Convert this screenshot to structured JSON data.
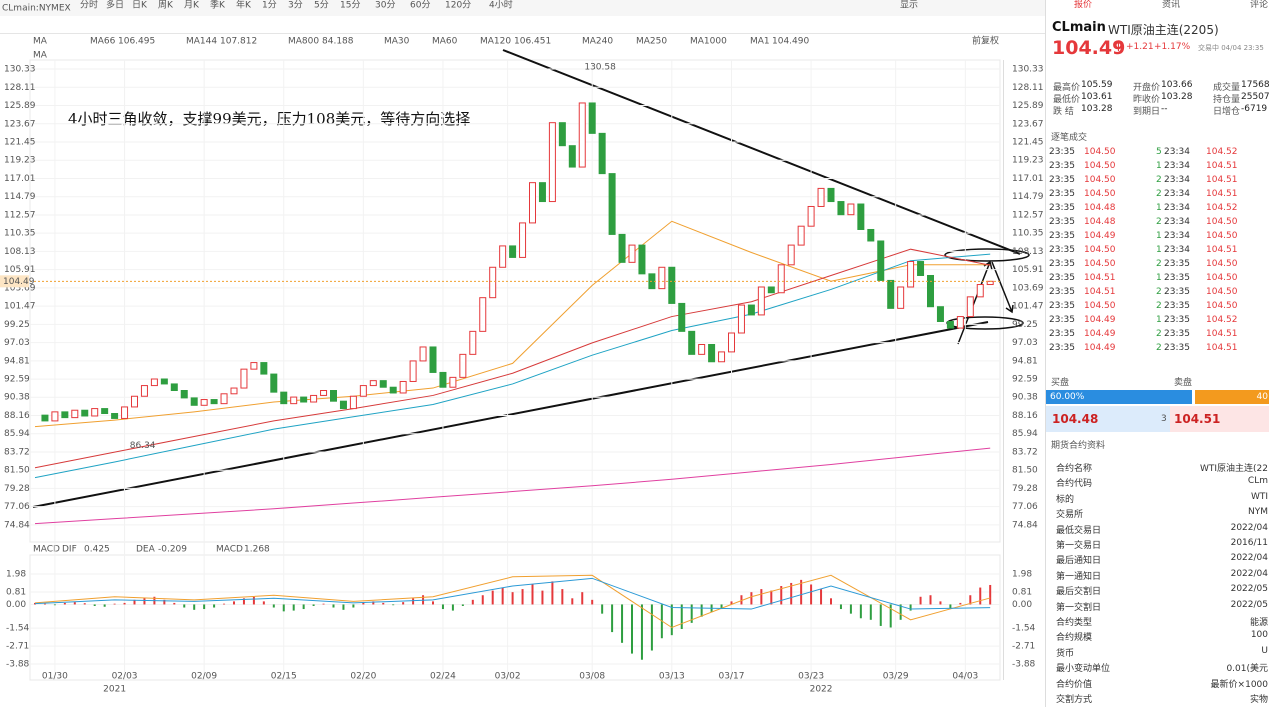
{
  "toolbar": {
    "symbol": "CLmain:NYMEX",
    "intervals": [
      "分时",
      "多日",
      "日K",
      "周K",
      "月K",
      "季K",
      "年K",
      "1分",
      "3分",
      "5分",
      "15分",
      "30分",
      "60分",
      "120分",
      "4小时"
    ],
    "display": "显示"
  },
  "chart_data": {
    "type": "candlestick",
    "annotation": "4小时三角收敛，支撑99美元，压力108美元，等待方向选择",
    "legend": [
      {
        "label": "MA",
        "value": null
      },
      {
        "name": "MA66",
        "value": "106.495",
        "color": "#f0a030"
      },
      {
        "name": "MA144",
        "value": "107.812",
        "color": "#1fa3c4"
      },
      {
        "name": "MA800",
        "value": "84.188",
        "color": "#e040a0"
      },
      {
        "name": "MA30",
        "value": null,
        "color": "#b8c8e8"
      },
      {
        "name": "MA60",
        "value": null,
        "color": "#b8c8e8"
      },
      {
        "name": "MA120",
        "value": "106.451",
        "color": "#d63a3a"
      },
      {
        "name": "MA240",
        "value": null,
        "color": "#f0d080"
      },
      {
        "name": "MA250",
        "value": null,
        "color": "#f0d080"
      },
      {
        "name": "MA1000",
        "value": null,
        "color": "#b8c8e8"
      },
      {
        "name": "MA1",
        "value": "104.490",
        "color": "#444"
      }
    ],
    "adjust": "前复权",
    "up_color": "#e5383b",
    "down_color": "#2e9e40",
    "closes": [
      88.2,
      87.5,
      88.6,
      87.9,
      88.8,
      88.1,
      89.0,
      88.4,
      87.8,
      89.2,
      90.5,
      91.8,
      92.6,
      92.0,
      91.2,
      90.3,
      89.4,
      90.1,
      89.6,
      90.8,
      91.5,
      93.8,
      94.6,
      93.2,
      91.0,
      89.6,
      90.4,
      89.8,
      90.6,
      91.2,
      89.9,
      89.0,
      90.5,
      91.8,
      92.4,
      91.6,
      90.9,
      92.3,
      94.8,
      96.5,
      93.4,
      91.6,
      92.8,
      95.6,
      98.4,
      102.5,
      106.2,
      108.8,
      107.4,
      111.6,
      116.5,
      114.2,
      123.8,
      121.0,
      118.4,
      126.2,
      122.5,
      117.6,
      110.2,
      106.8,
      108.9,
      105.4,
      103.6,
      106.2,
      101.8,
      98.4,
      95.6,
      96.8,
      94.7,
      95.9,
      98.2,
      101.6,
      100.4,
      103.8,
      103.1,
      106.5,
      108.9,
      111.2,
      113.6,
      115.8,
      114.2,
      112.6,
      113.9,
      110.8,
      109.4,
      104.6,
      101.2,
      103.8,
      106.9,
      105.2,
      101.4,
      99.6,
      98.8,
      100.2,
      102.6,
      104.1,
      104.49
    ],
    "ma": [
      {
        "name": "MA66",
        "color": "#f0a030",
        "x": [
          0,
          8,
          16,
          24,
          32,
          40,
          48,
          56,
          64,
          72,
          80,
          88,
          96
        ],
        "values": [
          86.8,
          87.6,
          88.6,
          89.8,
          90.5,
          91.5,
          94.5,
          104,
          111.8,
          108,
          104.5,
          106.5,
          106.5
        ]
      },
      {
        "name": "MA144",
        "color": "#1fa3c4",
        "x": [
          0,
          8,
          16,
          24,
          32,
          40,
          48,
          56,
          64,
          72,
          80,
          88,
          96
        ],
        "values": [
          80.6,
          82.5,
          84.5,
          86.5,
          88,
          89.5,
          92,
          95.5,
          98.5,
          100.5,
          103.5,
          107.0,
          107.8
        ]
      },
      {
        "name": "MA120",
        "color": "#d63a3a",
        "x": [
          0,
          8,
          16,
          24,
          32,
          40,
          48,
          56,
          64,
          72,
          80,
          88,
          96
        ],
        "values": [
          81.8,
          83.7,
          85.6,
          87.5,
          89,
          90.6,
          93.3,
          97,
          100.2,
          102,
          105.2,
          108.4,
          106.45
        ]
      },
      {
        "name": "MA800",
        "color": "#e040a0",
        "x": [
          0,
          8,
          16,
          24,
          32,
          40,
          48,
          56,
          64,
          72,
          80,
          88,
          96
        ],
        "values": [
          75.0,
          75.6,
          76.2,
          76.8,
          77.5,
          78.2,
          78.9,
          79.6,
          80.4,
          81.3,
          82.2,
          83.2,
          84.19
        ]
      }
    ],
    "high_label": {
      "index": 53,
      "value": 130.58
    },
    "low_label": {
      "index": 5,
      "value": 86.34
    },
    "last_price": {
      "value": 104.49
    },
    "ylim": [
      72.76,
      131.43
    ],
    "yticks": [
      130.33,
      128.11,
      125.89,
      123.67,
      121.45,
      119.23,
      117.01,
      114.79,
      112.57,
      110.35,
      108.13,
      105.91,
      103.69,
      101.47,
      99.25,
      97.03,
      94.81,
      92.59,
      90.38,
      88.16,
      85.94,
      83.72,
      {
        "value": 81.5,
        "label": "81.50"
      },
      79.28,
      77.06,
      74.84
    ],
    "xticks": [
      {
        "value": 2,
        "label": "01/30"
      },
      {
        "value": 9,
        "label": "02/03"
      },
      {
        "value": 17,
        "label": "02/09"
      },
      {
        "value": 25,
        "label": "02/15"
      },
      {
        "value": 33,
        "label": "02/20"
      },
      {
        "value": 41,
        "label": "02/24"
      },
      {
        "value": 47.5,
        "label": "03/02"
      },
      {
        "value": 56,
        "label": "03/08"
      },
      {
        "value": 64,
        "label": "03/13"
      },
      {
        "value": 70,
        "label": "03/17"
      },
      {
        "value": 78,
        "label": "03/23"
      },
      {
        "value": 86.5,
        "label": "03/29"
      },
      {
        "value": 93.5,
        "label": "04/03"
      }
    ],
    "years": [
      {
        "value": 8,
        "label": "2021"
      },
      {
        "value": 79,
        "label": "2022"
      }
    ],
    "macd": {
      "title": "MACD",
      "legend": [
        {
          "name": "DIF",
          "value": "0.425",
          "color": "#f0a030"
        },
        {
          "name": "DEA",
          "value": "-0.209",
          "color": "#2c9ad6"
        },
        {
          "name": "MACD",
          "value": "1.268",
          "color": "#e040a0"
        }
      ],
      "ylim": [
        -4.92,
        3.22
      ],
      "yticks": [
        1.98,
        0.81,
        {
          "value": 0,
          "label": "0.00"
        },
        -1.54,
        -2.71,
        -3.88
      ],
      "hist": [
        0.1,
        0.05,
        -0.05,
        0.1,
        0.15,
        0.08,
        -0.1,
        -0.15,
        0.05,
        0.1,
        0.3,
        0.45,
        0.5,
        0.3,
        0.1,
        -0.2,
        -0.35,
        -0.3,
        -0.2,
        0.05,
        0.2,
        0.4,
        0.5,
        0.2,
        -0.2,
        -0.45,
        -0.4,
        -0.3,
        -0.1,
        0.05,
        -0.2,
        -0.35,
        -0.2,
        0.1,
        0.2,
        0.1,
        -0.05,
        0.15,
        0.4,
        0.6,
        0.2,
        -0.3,
        -0.4,
        -0.1,
        0.3,
        0.6,
        0.9,
        1.1,
        0.8,
        1.0,
        1.3,
        0.9,
        1.5,
        1.0,
        0.4,
        0.8,
        0.3,
        -0.6,
        -1.8,
        -2.5,
        -3.2,
        -3.6,
        -3.0,
        -2.2,
        -2.0,
        -1.6,
        -1.2,
        -0.8,
        -0.5,
        -0.3,
        0.2,
        0.6,
        0.8,
        1.0,
        0.9,
        1.2,
        1.4,
        1.6,
        1.3,
        1.0,
        0.4,
        -0.3,
        -0.6,
        -0.9,
        -1.0,
        -1.4,
        -1.5,
        -1.0,
        -0.4,
        0.5,
        0.6,
        0.2,
        -0.3,
        0.1,
        0.6,
        1.1,
        1.268
      ],
      "lines": [
        {
          "name": "DIF",
          "color": "#f0a030",
          "x": [
            0,
            8,
            16,
            24,
            32,
            40,
            48,
            56,
            64,
            72,
            80,
            88,
            96
          ],
          "values": [
            0.1,
            0.5,
            0.3,
            0.6,
            0.2,
            0.5,
            1.8,
            1.9,
            -1.5,
            0.5,
            1.9,
            -1.0,
            0.425
          ]
        },
        {
          "name": "DEA",
          "color": "#2c9ad6",
          "x": [
            0,
            8,
            16,
            24,
            32,
            40,
            48,
            56,
            64,
            72,
            80,
            88,
            96
          ],
          "values": [
            0.05,
            0.3,
            0.2,
            0.4,
            0.1,
            0.3,
            1.2,
            1.7,
            -0.2,
            -0.3,
            1.2,
            -0.3,
            -0.209
          ]
        }
      ]
    }
  },
  "quote": {
    "tabs": [
      "报价",
      "资讯",
      "评论"
    ],
    "code": "CLmain",
    "name": "WTI原油主连(2205)",
    "price": "104.49",
    "arrow": "↑",
    "change": "+1.21",
    "pct": "+1.17%",
    "status": "交易中 04/04 23:35",
    "stats": [
      [
        "最高价",
        "105.59"
      ],
      [
        "开盘价",
        "103.66"
      ],
      [
        "成交量",
        "17568"
      ],
      [
        "最低价",
        "103.61"
      ],
      [
        "昨收价",
        "103.28"
      ],
      [
        "持仓量",
        "25507"
      ],
      [
        "跌 结",
        "103.28"
      ],
      [
        "到期日",
        "--"
      ],
      [
        "日增仓",
        "-6719"
      ]
    ],
    "trades_title": "逐笔成交",
    "trades": [
      [
        "23:35",
        "104.50",
        "5",
        "23:34",
        "104.52"
      ],
      [
        "23:35",
        "104.50",
        "1",
        "23:34",
        "104.51"
      ],
      [
        "23:35",
        "104.50",
        "2",
        "23:34",
        "104.51"
      ],
      [
        "23:35",
        "104.50",
        "2",
        "23:34",
        "104.51"
      ],
      [
        "23:35",
        "104.48",
        "1",
        "23:34",
        "104.52"
      ],
      [
        "23:35",
        "104.48",
        "2",
        "23:34",
        "104.50"
      ],
      [
        "23:35",
        "104.49",
        "1",
        "23:34",
        "104.50"
      ],
      [
        "23:35",
        "104.50",
        "1",
        "23:34",
        "104.51"
      ],
      [
        "23:35",
        "104.50",
        "2",
        "23:35",
        "104.50"
      ],
      [
        "23:35",
        "104.51",
        "1",
        "23:35",
        "104.50"
      ],
      [
        "23:35",
        "104.51",
        "2",
        "23:35",
        "104.50"
      ],
      [
        "23:35",
        "104.50",
        "2",
        "23:35",
        "104.50"
      ],
      [
        "23:35",
        "104.49",
        "1",
        "23:35",
        "104.52"
      ],
      [
        "23:35",
        "104.49",
        "2",
        "23:35",
        "104.51"
      ],
      [
        "23:35",
        "104.49",
        "2",
        "23:35",
        "104.51"
      ]
    ],
    "bid_label": "买盘",
    "ask_label": "卖盘",
    "bid_pct": "60.00%",
    "ask_pct": "40",
    "bid": "104.48",
    "bid_vol": "3",
    "ask": "104.51",
    "info_title": "期货合约资料",
    "info": [
      [
        "合约名称",
        "WTI原油主连(22"
      ],
      [
        "合约代码",
        "CLm"
      ],
      [
        "标的",
        "WTI"
      ],
      [
        "交易所",
        "NYM"
      ],
      [
        "最低交易日",
        "2022/04"
      ],
      [
        "第一交易日",
        "2016/11"
      ],
      [
        "最后通知日",
        "2022/04"
      ],
      [
        "第一通知日",
        "2022/04"
      ],
      [
        "最后交割日",
        "2022/05"
      ],
      [
        "第一交割日",
        "2022/05"
      ],
      [
        "合约类型",
        "能源"
      ],
      [
        "合约规模",
        "100"
      ],
      [
        "货币",
        "U"
      ],
      [
        "最小变动单位",
        "0.01(美元"
      ],
      [
        "合约价值",
        "最新价×1000"
      ],
      [
        "交割方式",
        "实物"
      ]
    ]
  }
}
